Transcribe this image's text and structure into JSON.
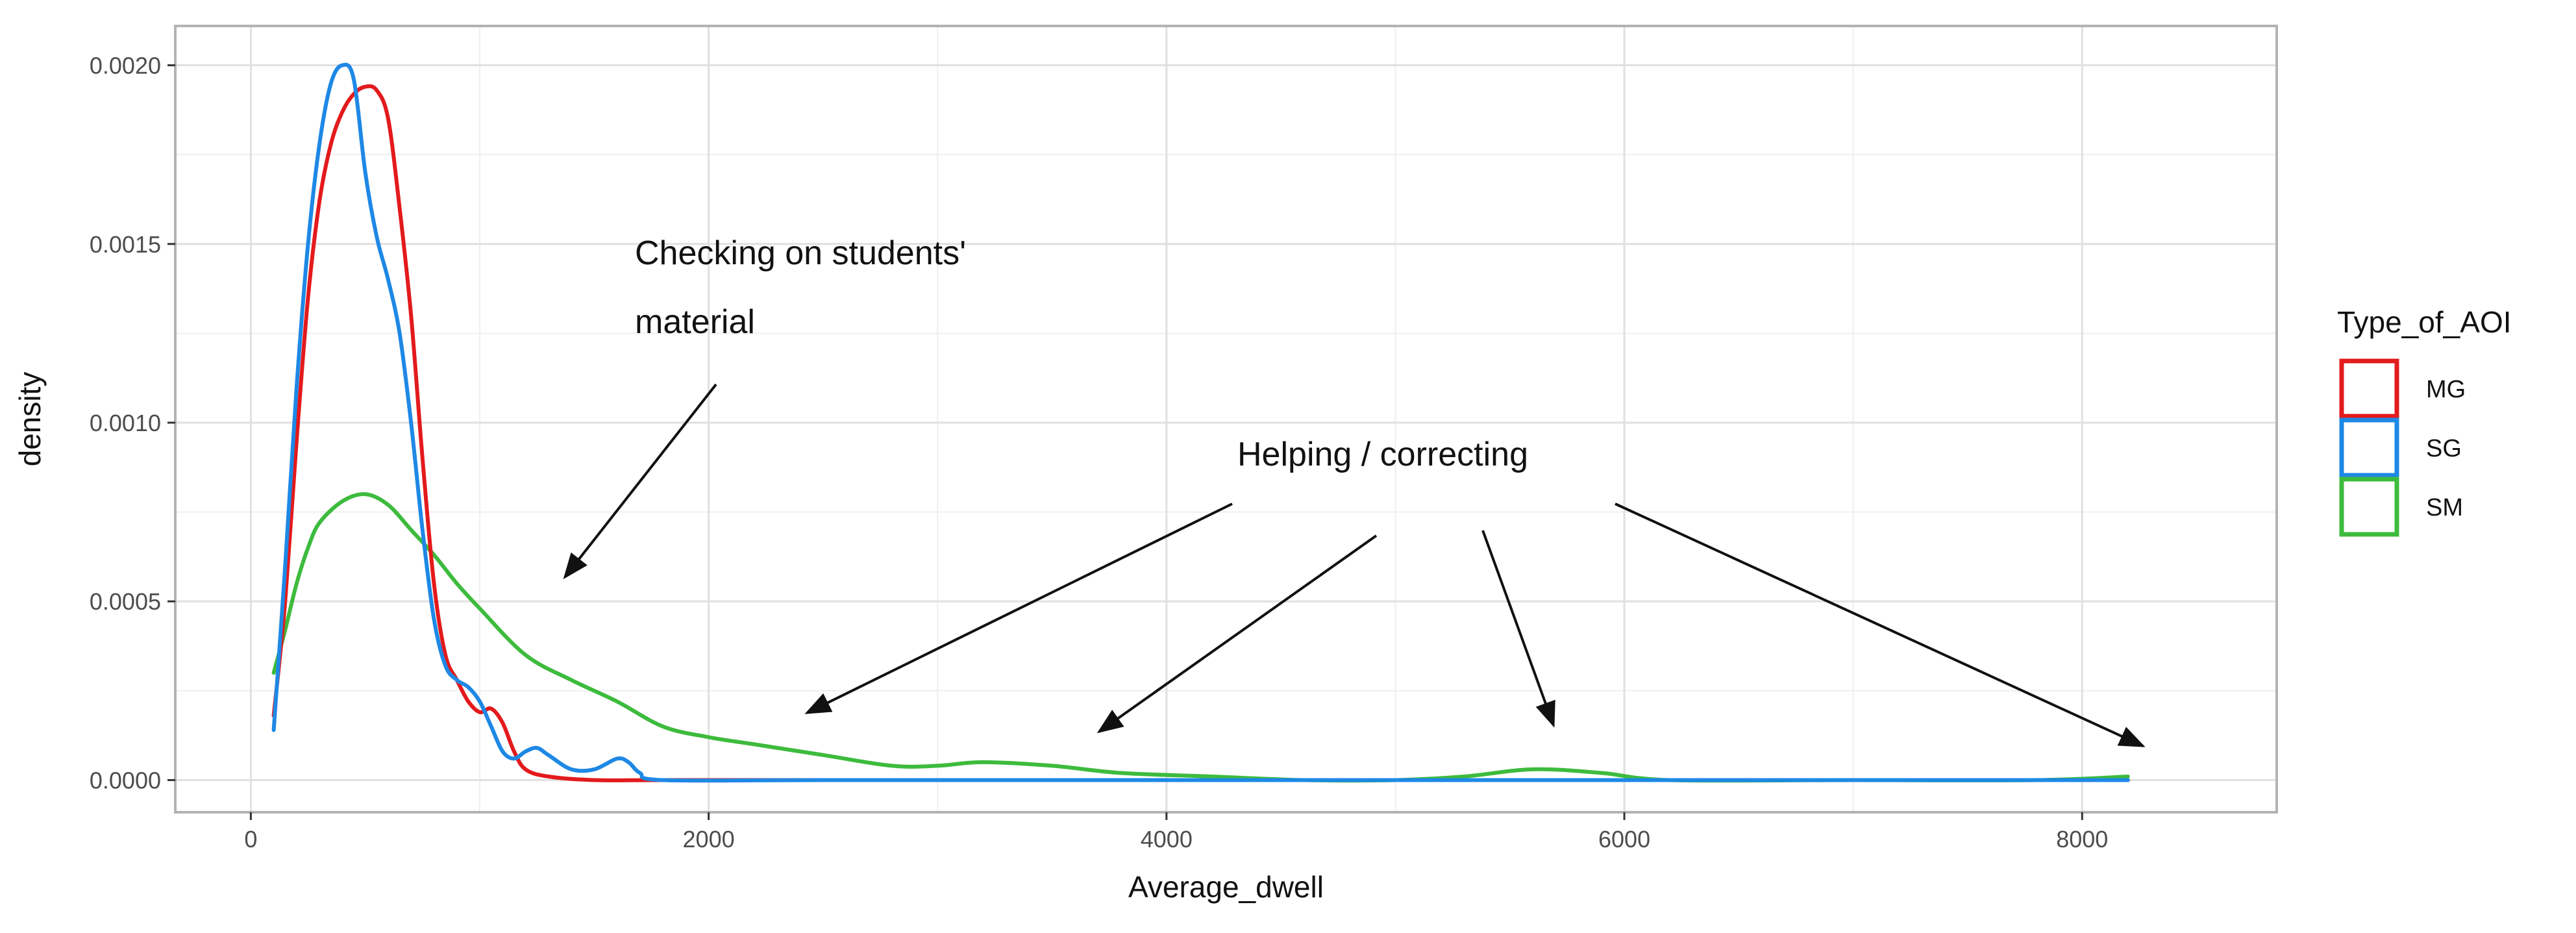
{
  "chart_data": {
    "type": "line",
    "xlabel": "Average_dwell",
    "ylabel": "density",
    "xlim": [
      -330,
      8850
    ],
    "ylim": [
      -9e-05,
      0.00211
    ],
    "x_ticks": [
      0,
      2000,
      4000,
      6000,
      8000
    ],
    "x_tick_labels": [
      "0",
      "2000",
      "4000",
      "6000",
      "8000"
    ],
    "y_ticks": [
      0,
      0.0005,
      0.001,
      0.0015,
      0.002
    ],
    "y_tick_labels": [
      "0.0000",
      "0.0005",
      "0.0010",
      "0.0015",
      "0.0020"
    ],
    "grid": true,
    "legend": {
      "title": "Type_of_AOI",
      "position": "right",
      "entries": [
        "MG",
        "SG",
        "SM"
      ]
    },
    "series": [
      {
        "name": "MG",
        "color": "#e31a1c",
        "points": [
          [
            100,
            0.00018
          ],
          [
            150,
            0.0005
          ],
          [
            200,
            0.00095
          ],
          [
            250,
            0.00135
          ],
          [
            300,
            0.00162
          ],
          [
            350,
            0.00178
          ],
          [
            400,
            0.00187
          ],
          [
            450,
            0.00192
          ],
          [
            500,
            0.00194
          ],
          [
            550,
            0.00193
          ],
          [
            600,
            0.00185
          ],
          [
            650,
            0.0016
          ],
          [
            700,
            0.0013
          ],
          [
            750,
            0.0009
          ],
          [
            800,
            0.00055
          ],
          [
            850,
            0.00035
          ],
          [
            900,
            0.00028
          ],
          [
            950,
            0.00022
          ],
          [
            1000,
            0.00019
          ],
          [
            1050,
            0.0002
          ],
          [
            1100,
            0.00016
          ],
          [
            1150,
            8e-05
          ],
          [
            1200,
            3e-05
          ],
          [
            1300,
            1e-05
          ],
          [
            1500,
            0.0
          ],
          [
            1800,
            0.0
          ],
          [
            2500,
            0.0
          ],
          [
            4000,
            0.0
          ],
          [
            6000,
            0.0
          ],
          [
            8200,
            0.0
          ]
        ]
      },
      {
        "name": "SG",
        "color": "#1e88e5",
        "points": [
          [
            100,
            0.00014
          ],
          [
            150,
            0.0006
          ],
          [
            200,
            0.0011
          ],
          [
            250,
            0.0015
          ],
          [
            300,
            0.00178
          ],
          [
            350,
            0.00195
          ],
          [
            400,
            0.002
          ],
          [
            450,
            0.00196
          ],
          [
            500,
            0.0017
          ],
          [
            550,
            0.00152
          ],
          [
            600,
            0.0014
          ],
          [
            650,
            0.00125
          ],
          [
            700,
            0.001
          ],
          [
            750,
            0.0007
          ],
          [
            800,
            0.00045
          ],
          [
            850,
            0.00032
          ],
          [
            900,
            0.00028
          ],
          [
            950,
            0.00026
          ],
          [
            1000,
            0.00022
          ],
          [
            1050,
            0.00015
          ],
          [
            1100,
            8e-05
          ],
          [
            1150,
            6e-05
          ],
          [
            1200,
            8e-05
          ],
          [
            1250,
            9e-05
          ],
          [
            1300,
            7e-05
          ],
          [
            1400,
            3e-05
          ],
          [
            1500,
            3e-05
          ],
          [
            1600,
            6e-05
          ],
          [
            1650,
            5e-05
          ],
          [
            1700,
            2e-05
          ],
          [
            1800,
            0.0
          ],
          [
            2500,
            0.0
          ],
          [
            4000,
            0.0
          ],
          [
            6000,
            0.0
          ],
          [
            8200,
            0.0
          ]
        ]
      },
      {
        "name": "SM",
        "color": "#3dbb3d",
        "points": [
          [
            100,
            0.0003
          ],
          [
            150,
            0.00042
          ],
          [
            200,
            0.00055
          ],
          [
            250,
            0.00065
          ],
          [
            300,
            0.00072
          ],
          [
            400,
            0.00078
          ],
          [
            500,
            0.0008
          ],
          [
            600,
            0.00077
          ],
          [
            700,
            0.0007
          ],
          [
            800,
            0.00063
          ],
          [
            900,
            0.00055
          ],
          [
            1000,
            0.00048
          ],
          [
            1200,
            0.00035
          ],
          [
            1400,
            0.00028
          ],
          [
            1600,
            0.00022
          ],
          [
            1800,
            0.00015
          ],
          [
            2000,
            0.00012
          ],
          [
            2200,
            0.0001
          ],
          [
            2500,
            7e-05
          ],
          [
            2800,
            4e-05
          ],
          [
            3000,
            4e-05
          ],
          [
            3200,
            5e-05
          ],
          [
            3500,
            4e-05
          ],
          [
            3800,
            2e-05
          ],
          [
            4200,
            1e-05
          ],
          [
            4600,
            0.0
          ],
          [
            5000,
            0.0
          ],
          [
            5300,
            1e-05
          ],
          [
            5600,
            3e-05
          ],
          [
            5900,
            2e-05
          ],
          [
            6200,
            0.0
          ],
          [
            7000,
            0.0
          ],
          [
            7800,
            0.0
          ],
          [
            8200,
            1e-05
          ]
        ]
      }
    ],
    "annotations": [
      {
        "lines": [
          "Checking on students'",
          "material"
        ]
      },
      {
        "lines": [
          "Helping / correcting"
        ]
      }
    ]
  }
}
